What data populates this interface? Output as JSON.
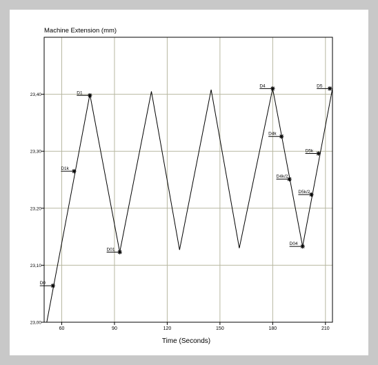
{
  "chart_data": {
    "type": "line",
    "title": "Machine Extension (mm)",
    "xlabel": "Time (Seconds)",
    "ylabel": "",
    "xlim": [
      50,
      214
    ],
    "ylim": [
      23.0,
      23.5
    ],
    "x_ticks": [
      60,
      90,
      120,
      150,
      180,
      210
    ],
    "x_tick_labels": [
      "60",
      "90",
      "120",
      "150",
      "180",
      "210"
    ],
    "y_ticks": [
      23.0,
      23.1,
      23.2,
      23.3,
      23.4
    ],
    "y_tick_labels": [
      "23,00",
      "23,10",
      "23,20",
      "23,30",
      "23,40"
    ],
    "grid": true,
    "series": [
      {
        "x": [
          51.5,
          76,
          93,
          111,
          127,
          145,
          161,
          180,
          197,
          214
        ],
        "y": [
          23.0,
          23.4,
          23.123,
          23.405,
          23.127,
          23.408,
          23.13,
          23.41,
          23.133,
          23.41
        ]
      }
    ],
    "markers": [
      {
        "label": "D0",
        "x": 55,
        "y": 23.064
      },
      {
        "label": "D1k",
        "x": 67,
        "y": 23.265
      },
      {
        "label": "D1",
        "x": 76,
        "y": 23.398
      },
      {
        "label": "D01",
        "x": 93,
        "y": 23.123
      },
      {
        "label": "D4",
        "x": 180,
        "y": 23.41
      },
      {
        "label": "D4k",
        "x": 185,
        "y": 23.326
      },
      {
        "label": "D4k/2",
        "x": 189.5,
        "y": 23.251
      },
      {
        "label": "D04",
        "x": 197,
        "y": 23.133
      },
      {
        "label": "D5k/2",
        "x": 202,
        "y": 23.224
      },
      {
        "label": "D5k",
        "x": 206,
        "y": 23.296
      },
      {
        "label": "D5",
        "x": 212.5,
        "y": 23.41
      }
    ]
  }
}
